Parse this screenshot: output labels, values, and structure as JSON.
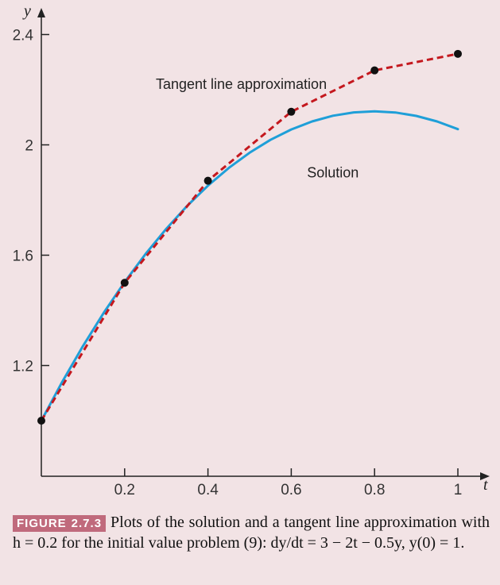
{
  "chart_data": {
    "type": "line",
    "title": "",
    "xlabel": "t",
    "ylabel": "y",
    "xlim": [
      0,
      1.08
    ],
    "ylim": [
      0.8,
      2.48
    ],
    "x_ticks": [
      0.2,
      0.4,
      0.6,
      0.8,
      1
    ],
    "x_tick_labels": [
      "0.2",
      "0.4",
      "0.6",
      "0.8",
      "1"
    ],
    "y_ticks": [
      1.2,
      1.6,
      2,
      2.4
    ],
    "y_tick_labels": [
      "1.2",
      "1.6",
      "2",
      "2.4"
    ],
    "grid": false,
    "series": [
      {
        "name": "Tangent line approximation",
        "style": "dashed-with-markers",
        "color": "#c4181e",
        "x": [
          0,
          0.2,
          0.4,
          0.6,
          0.8,
          1.0
        ],
        "y": [
          1.0,
          1.5,
          1.87,
          2.12,
          2.27,
          2.33
        ]
      },
      {
        "name": "Solution",
        "style": "solid",
        "color": "#1f9fd8",
        "x": [
          0,
          0.05,
          0.1,
          0.15,
          0.2,
          0.25,
          0.3,
          0.35,
          0.4,
          0.45,
          0.5,
          0.55,
          0.6,
          0.65,
          0.7,
          0.75,
          0.8,
          0.85,
          0.9,
          0.95,
          1.0
        ],
        "y": [
          1.0,
          1.1404,
          1.2709,
          1.3916,
          1.5026,
          1.604,
          1.6959,
          1.7786,
          1.852,
          1.9163,
          1.9716,
          2.0181,
          2.0558,
          2.0849,
          2.1055,
          2.1177,
          2.1216,
          2.1174,
          2.1051,
          2.0849,
          2.0569
        ]
      }
    ],
    "annotations": [
      {
        "text": "Tangent line approximation",
        "x": 0.48,
        "y": 2.22
      },
      {
        "text": "Solution",
        "x": 0.7,
        "y": 1.9
      }
    ]
  },
  "caption": {
    "figure_label": "FIGURE 2.7.3",
    "text": "Plots of the solution and a tangent line approximation with h = 0.2 for the initial value problem (9): dy/dt = 3 − 2t − 0.5y,  y(0) = 1."
  }
}
